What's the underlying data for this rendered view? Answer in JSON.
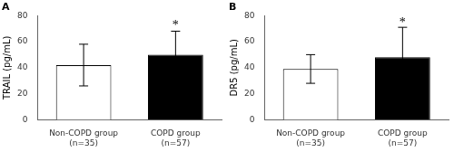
{
  "chart_data": [
    {
      "type": "bar",
      "title": "A",
      "categories": [
        "Non-COPD group\n(n=35)",
        "COPD group\n(n=57)"
      ],
      "values": [
        42,
        50
      ],
      "errors": [
        16,
        18
      ],
      "colors": [
        "white",
        "black"
      ],
      "ylabel": "TRAIL (pg/mL)",
      "ylim": [
        0,
        80
      ],
      "yticks": [
        0,
        20,
        40,
        60,
        80
      ],
      "grid": false,
      "annotations": [
        {
          "text": "*",
          "x": "COPD group\n(n=57)",
          "y": 70
        }
      ]
    },
    {
      "type": "bar",
      "title": "B",
      "categories": [
        "Non-COPD group\n(n=35)",
        "COPD group\n(n=57)"
      ],
      "values": [
        39,
        48
      ],
      "errors": [
        11,
        23
      ],
      "colors": [
        "white",
        "black"
      ],
      "ylabel": "DR5 (pg/mL)",
      "ylim": [
        0,
        80
      ],
      "yticks": [
        0,
        20,
        40,
        60,
        80
      ],
      "grid": false,
      "annotations": [
        {
          "text": "*",
          "x": "COPD group\n(n=57)",
          "y": 72
        }
      ]
    }
  ]
}
